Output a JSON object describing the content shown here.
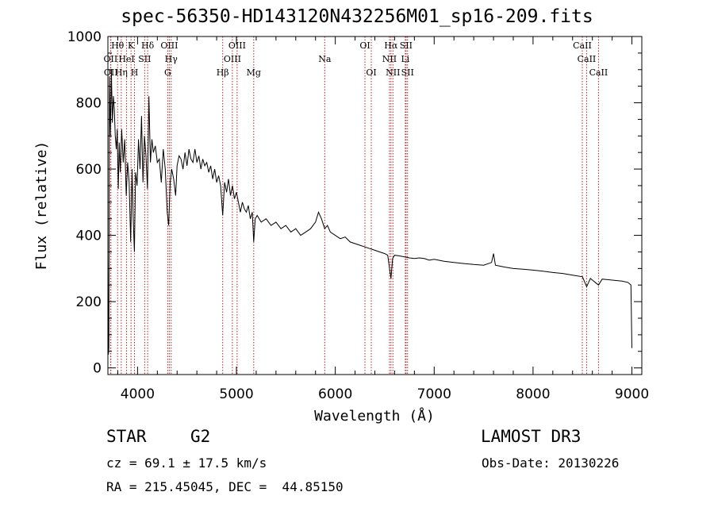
{
  "title": "spec-56350-HD143120N432256M01_sp16-209.fits",
  "chart_data": {
    "type": "line",
    "title": "spec-56350-HD143120N432256M01_sp16-209.fits",
    "xlabel": "Wavelength (Å)",
    "ylabel": "Flux (relative)",
    "xlim": [
      3700,
      9100
    ],
    "ylim": [
      -20,
      1000
    ],
    "x_ticks": [
      4000,
      5000,
      6000,
      7000,
      8000,
      9000
    ],
    "y_ticks": [
      0,
      200,
      400,
      600,
      800,
      1000
    ],
    "grid": false,
    "series": [
      {
        "name": "flux",
        "color": "#000000",
        "points": [
          [
            3700,
            350
          ],
          [
            3705,
            40
          ],
          [
            3710,
            60
          ],
          [
            3715,
            880
          ],
          [
            3725,
            700
          ],
          [
            3735,
            900
          ],
          [
            3745,
            740
          ],
          [
            3755,
            820
          ],
          [
            3765,
            780
          ],
          [
            3775,
            700
          ],
          [
            3785,
            660
          ],
          [
            3795,
            720
          ],
          [
            3805,
            540
          ],
          [
            3815,
            680
          ],
          [
            3825,
            590
          ],
          [
            3840,
            720
          ],
          [
            3855,
            620
          ],
          [
            3870,
            690
          ],
          [
            3885,
            520
          ],
          [
            3900,
            620
          ],
          [
            3915,
            560
          ],
          [
            3930,
            380
          ],
          [
            3945,
            600
          ],
          [
            3955,
            460
          ],
          [
            3968,
            350
          ],
          [
            3980,
            590
          ],
          [
            3995,
            550
          ],
          [
            4010,
            690
          ],
          [
            4025,
            600
          ],
          [
            4040,
            760
          ],
          [
            4055,
            560
          ],
          [
            4070,
            700
          ],
          [
            4085,
            640
          ],
          [
            4100,
            540
          ],
          [
            4115,
            820
          ],
          [
            4130,
            620
          ],
          [
            4145,
            690
          ],
          [
            4160,
            650
          ],
          [
            4180,
            670
          ],
          [
            4200,
            620
          ],
          [
            4220,
            630
          ],
          [
            4240,
            560
          ],
          [
            4260,
            660
          ],
          [
            4280,
            600
          ],
          [
            4300,
            470
          ],
          [
            4315,
            430
          ],
          [
            4330,
            560
          ],
          [
            4345,
            600
          ],
          [
            4365,
            570
          ],
          [
            4385,
            520
          ],
          [
            4400,
            610
          ],
          [
            4420,
            640
          ],
          [
            4440,
            630
          ],
          [
            4460,
            600
          ],
          [
            4480,
            650
          ],
          [
            4500,
            610
          ],
          [
            4520,
            660
          ],
          [
            4540,
            630
          ],
          [
            4560,
            620
          ],
          [
            4580,
            660
          ],
          [
            4600,
            620
          ],
          [
            4620,
            640
          ],
          [
            4640,
            600
          ],
          [
            4660,
            630
          ],
          [
            4680,
            610
          ],
          [
            4700,
            620
          ],
          [
            4720,
            590
          ],
          [
            4740,
            610
          ],
          [
            4760,
            570
          ],
          [
            4780,
            600
          ],
          [
            4800,
            560
          ],
          [
            4820,
            580
          ],
          [
            4840,
            550
          ],
          [
            4861,
            460
          ],
          [
            4880,
            560
          ],
          [
            4900,
            530
          ],
          [
            4920,
            570
          ],
          [
            4940,
            520
          ],
          [
            4960,
            550
          ],
          [
            4980,
            510
          ],
          [
            5000,
            530
          ],
          [
            5020,
            500
          ],
          [
            5040,
            470
          ],
          [
            5060,
            500
          ],
          [
            5080,
            480
          ],
          [
            5100,
            470
          ],
          [
            5120,
            490
          ],
          [
            5140,
            450
          ],
          [
            5160,
            470
          ],
          [
            5175,
            380
          ],
          [
            5190,
            450
          ],
          [
            5210,
            460
          ],
          [
            5250,
            440
          ],
          [
            5300,
            450
          ],
          [
            5350,
            430
          ],
          [
            5400,
            440
          ],
          [
            5450,
            420
          ],
          [
            5500,
            430
          ],
          [
            5550,
            410
          ],
          [
            5600,
            420
          ],
          [
            5650,
            400
          ],
          [
            5700,
            410
          ],
          [
            5750,
            420
          ],
          [
            5800,
            440
          ],
          [
            5830,
            470
          ],
          [
            5860,
            450
          ],
          [
            5893,
            420
          ],
          [
            5920,
            430
          ],
          [
            5950,
            410
          ],
          [
            6000,
            400
          ],
          [
            6050,
            390
          ],
          [
            6100,
            395
          ],
          [
            6150,
            380
          ],
          [
            6200,
            375
          ],
          [
            6250,
            370
          ],
          [
            6300,
            365
          ],
          [
            6350,
            360
          ],
          [
            6400,
            355
          ],
          [
            6450,
            350
          ],
          [
            6500,
            345
          ],
          [
            6530,
            340
          ],
          [
            6563,
            270
          ],
          [
            6580,
            330
          ],
          [
            6600,
            340
          ],
          [
            6650,
            338
          ],
          [
            6700,
            335
          ],
          [
            6750,
            332
          ],
          [
            6800,
            330
          ],
          [
            6850,
            332
          ],
          [
            6900,
            330
          ],
          [
            6950,
            325
          ],
          [
            7000,
            328
          ],
          [
            7100,
            322
          ],
          [
            7200,
            318
          ],
          [
            7300,
            315
          ],
          [
            7400,
            312
          ],
          [
            7500,
            310
          ],
          [
            7580,
            318
          ],
          [
            7600,
            345
          ],
          [
            7620,
            310
          ],
          [
            7700,
            305
          ],
          [
            7800,
            300
          ],
          [
            7900,
            298
          ],
          [
            8000,
            295
          ],
          [
            8100,
            292
          ],
          [
            8200,
            288
          ],
          [
            8300,
            285
          ],
          [
            8400,
            280
          ],
          [
            8500,
            275
          ],
          [
            8542,
            245
          ],
          [
            8580,
            270
          ],
          [
            8662,
            250
          ],
          [
            8700,
            268
          ],
          [
            8800,
            265
          ],
          [
            8900,
            262
          ],
          [
            8960,
            258
          ],
          [
            8990,
            250
          ],
          [
            9000,
            60
          ]
        ]
      }
    ],
    "lines": [
      {
        "label": "Hθ",
        "wavelength": 3798,
        "row": 0
      },
      {
        "label": "OII",
        "wavelength": 3727,
        "row": 1
      },
      {
        "label": "OII",
        "wavelength": 3730,
        "row": 2
      },
      {
        "label": "Hη",
        "wavelength": 3835,
        "row": 2
      },
      {
        "label": "HeI",
        "wavelength": 3889,
        "row": 1
      },
      {
        "label": "K",
        "wavelength": 3934,
        "row": 0
      },
      {
        "label": "H",
        "wavelength": 3969,
        "row": 2
      },
      {
        "label": "SII",
        "wavelength": 4072,
        "row": 1
      },
      {
        "label": "Hδ",
        "wavelength": 4102,
        "row": 0
      },
      {
        "label": "OIII",
        "wavelength": 4321,
        "row": 0
      },
      {
        "label": "Hγ",
        "wavelength": 4340,
        "row": 1
      },
      {
        "label": "G",
        "wavelength": 4305,
        "row": 2
      },
      {
        "label": "Hβ",
        "wavelength": 4861,
        "row": 2
      },
      {
        "label": "OIII",
        "wavelength": 5007,
        "row": 0
      },
      {
        "label": "OIII",
        "wavelength": 4959,
        "row": 1
      },
      {
        "label": "Mg",
        "wavelength": 5175,
        "row": 2
      },
      {
        "label": "Na",
        "wavelength": 5893,
        "row": 1
      },
      {
        "label": "OI",
        "wavelength": 6300,
        "row": 0
      },
      {
        "label": "OI",
        "wavelength": 6364,
        "row": 2
      },
      {
        "label": "Hα",
        "wavelength": 6563,
        "row": 0
      },
      {
        "label": "NII",
        "wavelength": 6548,
        "row": 1
      },
      {
        "label": "NII",
        "wavelength": 6583,
        "row": 2
      },
      {
        "label": "SII",
        "wavelength": 6716,
        "row": 0
      },
      {
        "label": "Li",
        "wavelength": 6708,
        "row": 1
      },
      {
        "label": "SII",
        "wavelength": 6731,
        "row": 2
      },
      {
        "label": "CaII",
        "wavelength": 8498,
        "row": 0
      },
      {
        "label": "CaII",
        "wavelength": 8542,
        "row": 1
      },
      {
        "label": "CaII",
        "wavelength": 8662,
        "row": 2
      }
    ],
    "line_color": "#b22222",
    "axis_color": "#000000"
  },
  "info": {
    "class_label": "STAR",
    "subclass": "G2",
    "survey": "LAMOST DR3",
    "cz": "cz = 69.1 ± 17.5 km/s",
    "obs_date": "Obs-Date: 20130226",
    "coords": "RA = 215.45045, DEC =  44.85150"
  }
}
